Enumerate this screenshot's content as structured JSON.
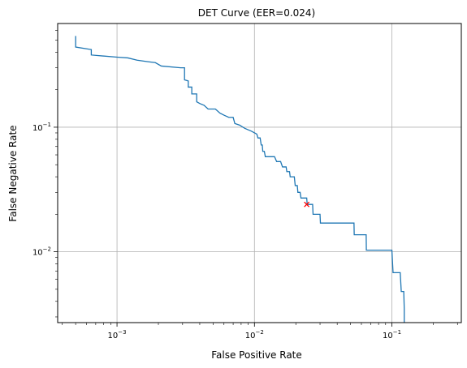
{
  "chart_data": {
    "type": "line",
    "title": "DET Curve (EER=0.024)",
    "xlabel": "False Positive Rate",
    "ylabel": "False Negative Rate",
    "xscale": "log",
    "yscale": "log",
    "xlim": [
      0.00037,
      0.32
    ],
    "ylim": [
      0.0027,
      0.68
    ],
    "grid": true,
    "x_ticks": [
      {
        "value": 0.001,
        "base": "10",
        "exp": "−3"
      },
      {
        "value": 0.01,
        "base": "10",
        "exp": "−2"
      },
      {
        "value": 0.1,
        "base": "10",
        "exp": "−1"
      }
    ],
    "y_ticks": [
      {
        "value": 0.01,
        "base": "10",
        "exp": "−2"
      },
      {
        "value": 0.1,
        "base": "10",
        "exp": "−1"
      }
    ],
    "line_color": "#1f77b4",
    "marker_color": "#ff0000",
    "series": [
      {
        "points": [
          [
            0.0005,
            0.54
          ],
          [
            0.0005,
            0.44
          ],
          [
            0.00065,
            0.42
          ],
          [
            0.00065,
            0.38
          ],
          [
            0.001,
            0.365
          ],
          [
            0.0012,
            0.36
          ],
          [
            0.0014,
            0.345
          ],
          [
            0.0017,
            0.335
          ],
          [
            0.0019,
            0.33
          ],
          [
            0.0021,
            0.31
          ],
          [
            0.0029,
            0.3
          ],
          [
            0.0031,
            0.3
          ],
          [
            0.0031,
            0.24
          ],
          [
            0.0033,
            0.235
          ],
          [
            0.0033,
            0.21
          ],
          [
            0.0035,
            0.21
          ],
          [
            0.0035,
            0.185
          ],
          [
            0.0038,
            0.185
          ],
          [
            0.0038,
            0.16
          ],
          [
            0.004,
            0.155
          ],
          [
            0.0043,
            0.15
          ],
          [
            0.0046,
            0.14
          ],
          [
            0.0052,
            0.14
          ],
          [
            0.0056,
            0.13
          ],
          [
            0.006,
            0.125
          ],
          [
            0.0065,
            0.12
          ],
          [
            0.007,
            0.12
          ],
          [
            0.0072,
            0.107
          ],
          [
            0.0078,
            0.104
          ],
          [
            0.0085,
            0.098
          ],
          [
            0.0095,
            0.093
          ],
          [
            0.0104,
            0.088
          ],
          [
            0.0106,
            0.082
          ],
          [
            0.011,
            0.082
          ],
          [
            0.0112,
            0.072
          ],
          [
            0.0114,
            0.072
          ],
          [
            0.0115,
            0.064
          ],
          [
            0.0118,
            0.064
          ],
          [
            0.012,
            0.058
          ],
          [
            0.014,
            0.058
          ],
          [
            0.0145,
            0.053
          ],
          [
            0.0155,
            0.053
          ],
          [
            0.016,
            0.048
          ],
          [
            0.017,
            0.048
          ],
          [
            0.0172,
            0.044
          ],
          [
            0.018,
            0.044
          ],
          [
            0.0182,
            0.04
          ],
          [
            0.0195,
            0.04
          ],
          [
            0.0198,
            0.034
          ],
          [
            0.0205,
            0.034
          ],
          [
            0.0207,
            0.03
          ],
          [
            0.0215,
            0.03
          ],
          [
            0.0218,
            0.027
          ],
          [
            0.024,
            0.027
          ],
          [
            0.0242,
            0.024
          ],
          [
            0.0265,
            0.024
          ],
          [
            0.0267,
            0.02
          ],
          [
            0.03,
            0.02
          ],
          [
            0.0302,
            0.017
          ],
          [
            0.053,
            0.017
          ],
          [
            0.0532,
            0.0137
          ],
          [
            0.065,
            0.0137
          ],
          [
            0.0652,
            0.0103
          ],
          [
            0.1,
            0.0103
          ],
          [
            0.102,
            0.0068
          ],
          [
            0.115,
            0.0068
          ],
          [
            0.117,
            0.0048
          ],
          [
            0.122,
            0.0048
          ],
          [
            0.123,
            0.0035
          ],
          [
            0.123,
            0.0027
          ]
        ]
      }
    ],
    "eer_point": {
      "x": 0.024,
      "y": 0.024
    }
  }
}
